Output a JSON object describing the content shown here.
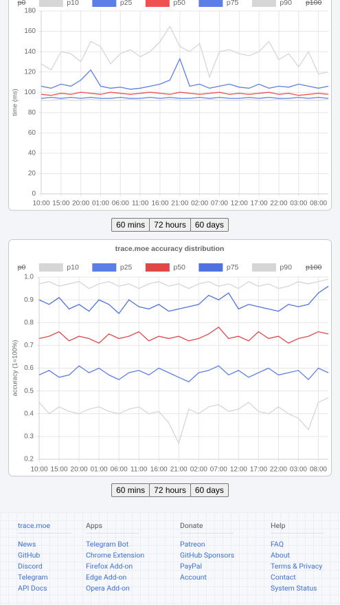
{
  "chart_data": [
    {
      "type": "line",
      "ylabel": "time (ms)",
      "categories": [
        "10:00",
        null,
        "15:00",
        null,
        "20:00",
        null,
        "01:00",
        null,
        "06:00",
        null,
        "11:00",
        null,
        "16:00",
        null,
        "21:00",
        null,
        "02:00",
        null,
        "07:00",
        null,
        "12:00",
        null,
        "17:00",
        null,
        "22:00",
        null,
        "03:00",
        null,
        "08:00",
        null
      ],
      "series": [
        {
          "name": "p0",
          "hidden": true
        },
        {
          "name": "p10",
          "color": "#d6d6d6",
          "values": [
            92,
            92,
            93,
            92,
            92,
            93,
            92,
            92,
            92,
            93,
            92,
            92,
            92,
            93,
            92,
            92,
            92,
            93,
            92,
            92,
            92,
            93,
            92,
            92,
            93,
            92,
            92,
            92,
            92,
            93
          ]
        },
        {
          "name": "p25",
          "color": "#5b7fe6",
          "values": [
            94,
            95,
            94,
            95,
            94,
            95,
            94,
            94,
            95,
            94,
            94,
            95,
            94,
            95,
            94,
            94,
            95,
            94,
            95,
            94,
            94,
            95,
            94,
            95,
            94,
            94,
            95,
            94,
            95,
            94
          ]
        },
        {
          "name": "p50",
          "color": "#f05050",
          "values": [
            98,
            97,
            99,
            98,
            100,
            99,
            98,
            100,
            99,
            98,
            99,
            100,
            99,
            98,
            100,
            99,
            98,
            99,
            100,
            98,
            99,
            98,
            99,
            100,
            98,
            99,
            97,
            98,
            99,
            98
          ]
        },
        {
          "name": "p75",
          "color": "#5b7fe6",
          "values": [
            106,
            104,
            108,
            106,
            112,
            122,
            106,
            104,
            105,
            103,
            104,
            106,
            108,
            112,
            133,
            106,
            108,
            104,
            106,
            108,
            105,
            104,
            108,
            104,
            106,
            105,
            108,
            106,
            104,
            106
          ]
        },
        {
          "name": "p90",
          "color": "#d6d6d6",
          "values": [
            128,
            122,
            140,
            138,
            130,
            150,
            145,
            128,
            138,
            142,
            135,
            140,
            150,
            165,
            145,
            140,
            148,
            115,
            140,
            142,
            138,
            136,
            140,
            150,
            132,
            138,
            125,
            140,
            118,
            120
          ]
        },
        {
          "name": "p100",
          "hidden": true
        }
      ],
      "ylim": [
        0,
        180
      ],
      "yticks": [
        0,
        20,
        40,
        60,
        80,
        100,
        120,
        140,
        160,
        180
      ],
      "grid": true
    },
    {
      "type": "line",
      "title": "trace.moe accuracy distribution",
      "ylabel": "accuracy (1=100%)",
      "categories": [
        "10:00",
        null,
        "15:00",
        null,
        "20:00",
        null,
        "01:00",
        null,
        "06:00",
        null,
        "11:00",
        null,
        "16:00",
        null,
        "21:00",
        null,
        "02:00",
        null,
        "07:00",
        null,
        "12:00",
        null,
        "17:00",
        null,
        "22:00",
        null,
        "03:00",
        null,
        "08:00",
        null
      ],
      "series": [
        {
          "name": "p0",
          "hidden": true
        },
        {
          "name": "p10",
          "color": "#d6d6d6",
          "values": [
            0.45,
            0.4,
            0.43,
            0.41,
            0.4,
            0.42,
            0.43,
            0.41,
            0.4,
            0.42,
            0.43,
            0.4,
            0.41,
            0.36,
            0.27,
            0.42,
            0.4,
            0.43,
            0.44,
            0.41,
            0.42,
            0.45,
            0.41,
            0.4,
            0.43,
            0.4,
            0.38,
            0.33,
            0.45,
            0.47
          ]
        },
        {
          "name": "p25",
          "color": "#5b7fe6",
          "values": [
            0.57,
            0.59,
            0.56,
            0.57,
            0.61,
            0.58,
            0.6,
            0.57,
            0.55,
            0.58,
            0.59,
            0.57,
            0.6,
            0.58,
            0.56,
            0.54,
            0.58,
            0.59,
            0.61,
            0.57,
            0.59,
            0.56,
            0.58,
            0.6,
            0.57,
            0.58,
            0.59,
            0.55,
            0.6,
            0.58
          ]
        },
        {
          "name": "p50",
          "color": "#e04848",
          "values": [
            0.73,
            0.74,
            0.76,
            0.72,
            0.74,
            0.73,
            0.71,
            0.75,
            0.73,
            0.74,
            0.76,
            0.72,
            0.74,
            0.73,
            0.74,
            0.72,
            0.73,
            0.75,
            0.78,
            0.73,
            0.74,
            0.72,
            0.76,
            0.73,
            0.74,
            0.71,
            0.73,
            0.74,
            0.76,
            0.75
          ]
        },
        {
          "name": "p75",
          "color": "#4f72e0",
          "values": [
            0.9,
            0.88,
            0.91,
            0.86,
            0.88,
            0.85,
            0.9,
            0.88,
            0.84,
            0.9,
            0.87,
            0.86,
            0.88,
            0.85,
            0.86,
            0.87,
            0.88,
            0.92,
            0.9,
            0.93,
            0.86,
            0.88,
            0.87,
            0.86,
            0.85,
            0.88,
            0.87,
            0.88,
            0.93,
            0.96
          ]
        },
        {
          "name": "p90",
          "color": "#d6d6d6",
          "values": [
            0.97,
            0.98,
            0.96,
            0.97,
            0.98,
            0.95,
            0.97,
            0.98,
            0.96,
            0.97,
            0.95,
            0.97,
            0.98,
            0.96,
            0.97,
            0.95,
            0.97,
            0.98,
            0.96,
            0.97,
            0.95,
            0.98,
            0.96,
            0.97,
            0.95,
            0.96,
            0.98,
            0.97,
            0.98,
            0.99
          ]
        },
        {
          "name": "p100",
          "hidden": true
        }
      ],
      "ylim": [
        0.2,
        1
      ],
      "yticks": [
        0.2,
        0.3,
        0.4,
        0.5,
        0.6,
        0.7,
        0.8,
        0.9,
        {
          "value": 1,
          "label": "1.0"
        }
      ],
      "grid": true
    }
  ],
  "buttons": [
    [
      "60 mins",
      "72 hours",
      "60 days"
    ],
    [
      "60 mins",
      "72 hours",
      "60 days"
    ]
  ],
  "footer": [
    {
      "heading": "trace.moe",
      "links": [
        "News",
        "GitHub",
        "Discord",
        "Telegram",
        "API Docs"
      ]
    },
    {
      "heading": "Apps",
      "links": [
        "Telegram Bot",
        "Chrome Extension",
        "Firefox Add-on",
        "Edge Add-on",
        "Opera Add-on"
      ]
    },
    {
      "heading": "Donate",
      "links": [
        "Patreon",
        "GitHub Sponsors",
        "PayPal",
        "Account"
      ]
    },
    {
      "heading": "Help",
      "links": [
        "FAQ",
        "About",
        "Terms & Privacy",
        "Contact",
        "System Status"
      ]
    }
  ]
}
